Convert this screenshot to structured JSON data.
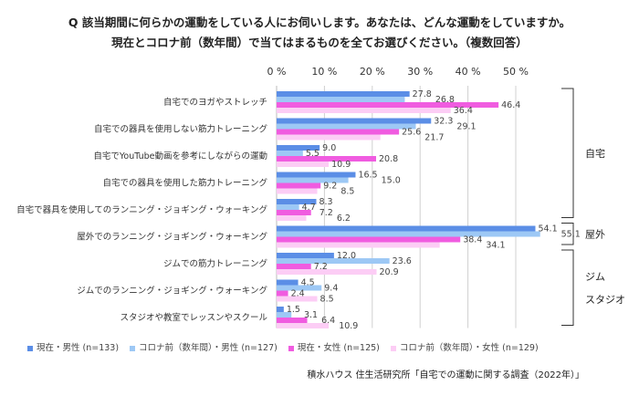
{
  "title_line1": "Q 該当期間に何らかの運動をしている人にお伺いします。あなたは、どんな運動をしていますか。",
  "title_line2": "現在とコロナ前（数年間）で当てはまるものを全てお選びください。（複数回答）",
  "source": "積水ハウス 住生活研究所「自宅での運動に関する調査（2022年）」",
  "chart_data": {
    "type": "bar",
    "orientation": "horizontal",
    "xlim": [
      0,
      55
    ],
    "ticks": [
      "0 %",
      "10 %",
      "20 %",
      "30 %",
      "40 %",
      "50 %"
    ],
    "tick_values": [
      0,
      10,
      20,
      30,
      40,
      50
    ],
    "grid": true,
    "legend_position": "bottom",
    "categories": [
      "自宅でのヨガやストレッチ",
      "自宅での器具を使用しない筋力トレーニング",
      "自宅でYouTube動画を参考にしながらの運動",
      "自宅での器具を使用した筋力トレーニング",
      "自宅で器具を使用してのランニング・ジョギング・ウォーキング",
      "屋外でのランニング・ジョギング・ウォーキング",
      "ジムでの筋力トレーニング",
      "ジムでのランニング・ジョギング・ウォーキング",
      "スタジオや教室でレッスンやスクール"
    ],
    "series": [
      {
        "name": "現在・男性 (n=133)",
        "color": "#5b8ee6",
        "values": [
          27.8,
          32.3,
          9.0,
          16.5,
          8.3,
          54.1,
          12.0,
          4.5,
          1.5
        ]
      },
      {
        "name": "コロナ前（数年間）・男性 (n=127)",
        "color": "#9dc8f5",
        "values": [
          26.8,
          29.1,
          5.5,
          15.0,
          4.7,
          55.1,
          23.6,
          9.4,
          3.1
        ]
      },
      {
        "name": "現在・女性 (n=125)",
        "color": "#f05ce0",
        "values": [
          46.4,
          25.6,
          20.8,
          9.2,
          7.2,
          38.4,
          7.2,
          2.4,
          6.4
        ]
      },
      {
        "name": "コロナ前（数年間）・女性 (n=129)",
        "color": "#fccdf5",
        "values": [
          36.4,
          21.7,
          10.9,
          8.5,
          6.2,
          34.1,
          20.9,
          8.5,
          10.9
        ]
      }
    ],
    "groups": [
      {
        "label": "自宅",
        "from": 0,
        "to": 4
      },
      {
        "label": "屋外",
        "from": 5,
        "to": 5
      },
      {
        "label": "ジム\nスタジオ",
        "lines": [
          "ジム",
          "スタジオ"
        ],
        "from": 6,
        "to": 8
      }
    ]
  }
}
